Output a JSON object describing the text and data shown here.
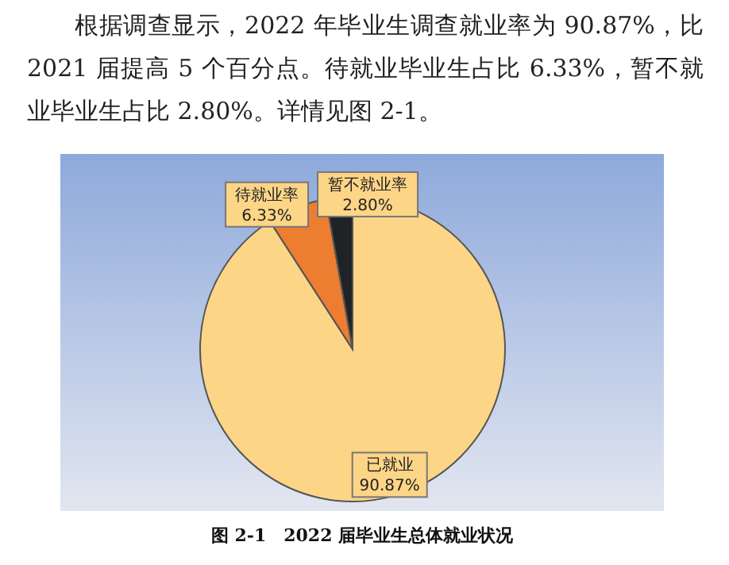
{
  "chart_data": {
    "type": "pie",
    "title": "图 2-1　2022 届毕业生总体就业状况",
    "annotations": [
      "根据调查显示，2022 年毕业生调查就业率为 90.87%，比 2021 届提高 5 个百分点。待就业毕业生占比 6.33%，暂不就业毕业生占比 2.80%。详情见图 2-1。"
    ],
    "categories": [
      "已就业",
      "待就业率",
      "暂不就业率"
    ],
    "values": [
      90.87,
      6.33,
      2.8
    ],
    "colors": [
      "#fdd587",
      "#ed7d31",
      "#1f2326"
    ],
    "value_labels": [
      "90.87%",
      "6.33%",
      "2.80%"
    ],
    "legend": false
  }
}
